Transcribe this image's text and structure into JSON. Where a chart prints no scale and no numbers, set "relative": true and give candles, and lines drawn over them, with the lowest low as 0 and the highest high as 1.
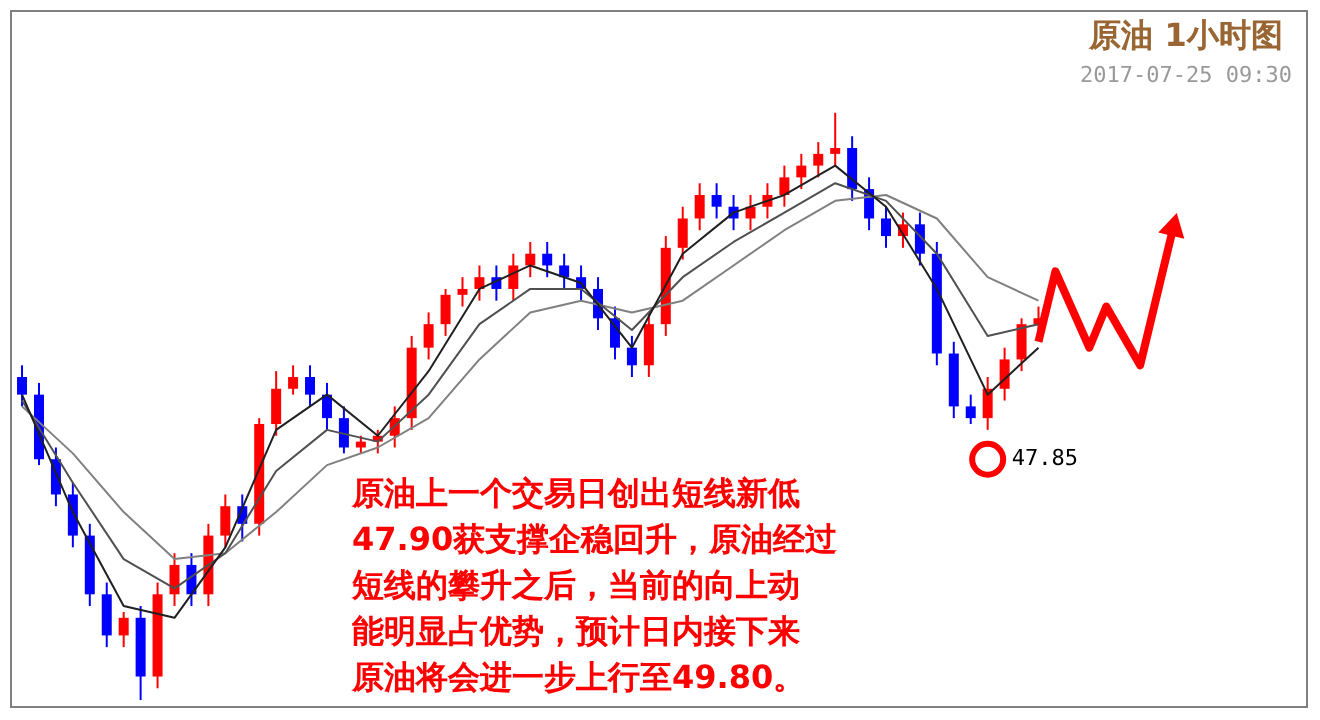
{
  "chart_data": {
    "type": "candlestick",
    "title": "原油 1小时图",
    "subtitle": "2017-07-25 09:30",
    "relative": true,
    "grid": false,
    "categories": [
      null,
      null,
      null,
      null,
      null,
      null,
      null,
      null,
      null,
      null,
      null,
      null,
      null,
      null,
      null,
      null,
      null,
      null,
      null,
      null,
      null,
      null,
      null,
      null,
      null,
      null,
      null,
      null,
      null,
      null,
      null,
      null,
      null,
      null,
      null,
      null,
      null,
      null,
      null,
      null,
      null,
      null,
      null,
      null,
      null,
      null,
      null,
      null,
      null,
      null,
      null,
      null,
      null,
      null,
      null,
      null,
      null,
      null,
      null,
      null,
      null,
      null,
      null,
      null,
      null,
      null,
      null,
      null,
      null
    ],
    "ohlc": [
      [
        0.55,
        0.57,
        0.5,
        0.52
      ],
      [
        0.52,
        0.54,
        0.4,
        0.41
      ],
      [
        0.41,
        0.43,
        0.33,
        0.35
      ],
      [
        0.35,
        0.37,
        0.26,
        0.28
      ],
      [
        0.28,
        0.3,
        0.16,
        0.18
      ],
      [
        0.18,
        0.2,
        0.09,
        0.11
      ],
      [
        0.11,
        0.15,
        0.09,
        0.14
      ],
      [
        0.14,
        0.16,
        0.0,
        0.04
      ],
      [
        0.04,
        0.2,
        0.02,
        0.18
      ],
      [
        0.18,
        0.25,
        0.16,
        0.23
      ],
      [
        0.23,
        0.25,
        0.16,
        0.18
      ],
      [
        0.18,
        0.3,
        0.16,
        0.28
      ],
      [
        0.28,
        0.35,
        0.26,
        0.33
      ],
      [
        0.33,
        0.35,
        0.27,
        0.3
      ],
      [
        0.3,
        0.48,
        0.28,
        0.47
      ],
      [
        0.47,
        0.56,
        0.45,
        0.53
      ],
      [
        0.53,
        0.57,
        0.52,
        0.55
      ],
      [
        0.55,
        0.57,
        0.5,
        0.52
      ],
      [
        0.52,
        0.54,
        0.46,
        0.48
      ],
      [
        0.48,
        0.5,
        0.42,
        0.43
      ],
      [
        0.43,
        0.45,
        0.42,
        0.44
      ],
      [
        0.44,
        0.46,
        0.42,
        0.45
      ],
      [
        0.45,
        0.5,
        0.43,
        0.48
      ],
      [
        0.48,
        0.62,
        0.46,
        0.6
      ],
      [
        0.6,
        0.66,
        0.58,
        0.64
      ],
      [
        0.64,
        0.7,
        0.62,
        0.69
      ],
      [
        0.69,
        0.72,
        0.67,
        0.7
      ],
      [
        0.7,
        0.74,
        0.68,
        0.72
      ],
      [
        0.72,
        0.74,
        0.68,
        0.7
      ],
      [
        0.7,
        0.76,
        0.68,
        0.74
      ],
      [
        0.74,
        0.78,
        0.72,
        0.76
      ],
      [
        0.76,
        0.78,
        0.72,
        0.74
      ],
      [
        0.74,
        0.76,
        0.7,
        0.72
      ],
      [
        0.72,
        0.74,
        0.68,
        0.7
      ],
      [
        0.7,
        0.72,
        0.63,
        0.65
      ],
      [
        0.65,
        0.67,
        0.58,
        0.6
      ],
      [
        0.6,
        0.62,
        0.55,
        0.57
      ],
      [
        0.57,
        0.66,
        0.55,
        0.64
      ],
      [
        0.64,
        0.79,
        0.62,
        0.77
      ],
      [
        0.77,
        0.84,
        0.75,
        0.82
      ],
      [
        0.82,
        0.88,
        0.8,
        0.86
      ],
      [
        0.86,
        0.88,
        0.82,
        0.84
      ],
      [
        0.84,
        0.86,
        0.8,
        0.82
      ],
      [
        0.82,
        0.86,
        0.8,
        0.84
      ],
      [
        0.84,
        0.88,
        0.82,
        0.86
      ],
      [
        0.86,
        0.91,
        0.84,
        0.89
      ],
      [
        0.89,
        0.93,
        0.87,
        0.91
      ],
      [
        0.91,
        0.95,
        0.89,
        0.93
      ],
      [
        0.93,
        1.0,
        0.91,
        0.94
      ],
      [
        0.94,
        0.96,
        0.85,
        0.87
      ],
      [
        0.87,
        0.89,
        0.8,
        0.82
      ],
      [
        0.82,
        0.84,
        0.77,
        0.79
      ],
      [
        0.79,
        0.83,
        0.77,
        0.81
      ],
      [
        0.81,
        0.83,
        0.74,
        0.76
      ],
      [
        0.76,
        0.78,
        0.57,
        0.59
      ],
      [
        0.59,
        0.61,
        0.48,
        0.5
      ],
      [
        0.5,
        0.52,
        0.47,
        0.48
      ],
      [
        0.48,
        0.55,
        0.46,
        0.53
      ],
      [
        0.53,
        0.6,
        0.51,
        0.58
      ],
      [
        0.58,
        0.65,
        0.56,
        0.64
      ],
      [
        0.64,
        0.67,
        0.62,
        0.65
      ],
      null,
      null,
      null,
      null,
      null,
      null,
      null,
      null
    ],
    "series": [
      {
        "type": "line",
        "color": "#808080",
        "values": [
          0.5,
          null,
          null,
          0.42,
          null,
          null,
          0.32,
          null,
          null,
          0.24,
          null,
          null,
          0.25,
          null,
          null,
          0.32,
          null,
          null,
          0.4,
          null,
          null,
          0.43,
          null,
          null,
          0.48,
          null,
          null,
          0.58,
          null,
          null,
          0.66,
          null,
          null,
          0.68,
          null,
          null,
          0.66,
          null,
          null,
          0.68,
          null,
          null,
          0.74,
          null,
          null,
          0.8,
          null,
          null,
          0.85,
          null,
          null,
          0.86,
          null,
          null,
          0.82,
          null,
          null,
          0.72,
          null,
          null,
          0.68,
          null,
          null,
          null,
          null,
          null,
          null,
          null,
          null
        ]
      },
      {
        "type": "line",
        "color": "#505050",
        "values": [
          0.51,
          null,
          null,
          0.37,
          null,
          null,
          0.24,
          null,
          null,
          0.19,
          null,
          null,
          0.25,
          null,
          null,
          0.39,
          null,
          null,
          0.46,
          null,
          null,
          0.44,
          null,
          null,
          0.52,
          null,
          null,
          0.64,
          null,
          null,
          0.7,
          null,
          null,
          0.7,
          null,
          null,
          0.63,
          null,
          null,
          0.72,
          null,
          null,
          0.78,
          null,
          null,
          0.83,
          null,
          null,
          0.88,
          null,
          null,
          0.85,
          null,
          null,
          0.76,
          null,
          null,
          0.62,
          null,
          null,
          0.64,
          null,
          null,
          null,
          null,
          null,
          null,
          null,
          null
        ]
      },
      {
        "type": "line",
        "color": "#202020",
        "values": [
          0.52,
          null,
          null,
          0.32,
          null,
          null,
          0.16,
          null,
          null,
          0.14,
          null,
          null,
          0.26,
          null,
          null,
          0.46,
          null,
          null,
          0.52,
          null,
          null,
          0.45,
          null,
          null,
          0.56,
          null,
          null,
          0.7,
          null,
          null,
          0.74,
          null,
          null,
          0.71,
          null,
          null,
          0.6,
          null,
          null,
          0.76,
          null,
          null,
          0.83,
          null,
          null,
          0.86,
          null,
          null,
          0.91,
          null,
          null,
          0.84,
          null,
          null,
          0.7,
          null,
          null,
          0.52,
          null,
          null,
          0.6,
          null,
          null,
          null,
          null,
          null,
          null,
          null,
          null
        ]
      },
      {
        "type": "scatter",
        "color": "#ff0000",
        "marker": "circle",
        "values": [
          null,
          null,
          null,
          null,
          null,
          null,
          null,
          null,
          null,
          null,
          null,
          null,
          null,
          null,
          null,
          null,
          null,
          null,
          null,
          null,
          null,
          null,
          null,
          null,
          null,
          null,
          null,
          null,
          null,
          null,
          null,
          null,
          null,
          null,
          null,
          null,
          null,
          null,
          null,
          null,
          null,
          null,
          null,
          null,
          null,
          null,
          null,
          null,
          null,
          null,
          null,
          null,
          null,
          null,
          null,
          null,
          null,
          0.41,
          null,
          null,
          null,
          null,
          null,
          null,
          null,
          null,
          null,
          null,
          null
        ]
      },
      {
        "type": "line",
        "color": "#ff0000",
        "values": [
          null,
          null,
          null,
          null,
          null,
          null,
          null,
          null,
          null,
          null,
          null,
          null,
          null,
          null,
          null,
          null,
          null,
          null,
          null,
          null,
          null,
          null,
          null,
          null,
          null,
          null,
          null,
          null,
          null,
          null,
          null,
          null,
          null,
          null,
          null,
          null,
          null,
          null,
          null,
          null,
          null,
          null,
          null,
          null,
          null,
          null,
          null,
          null,
          null,
          null,
          null,
          null,
          null,
          null,
          null,
          null,
          null,
          null,
          null,
          null,
          0.61,
          0.73,
          null,
          0.6,
          0.67,
          null,
          0.57,
          null,
          0.81
        ]
      }
    ],
    "annotations": [
      "47.85",
      "原油上一个交易日创出短线新低47.90获支撑企稳回升，原油经过短线的攀升之后，当前的向上动能明显占优势，预计日内接下来原油将会进一步上行至49.80。"
    ]
  }
}
